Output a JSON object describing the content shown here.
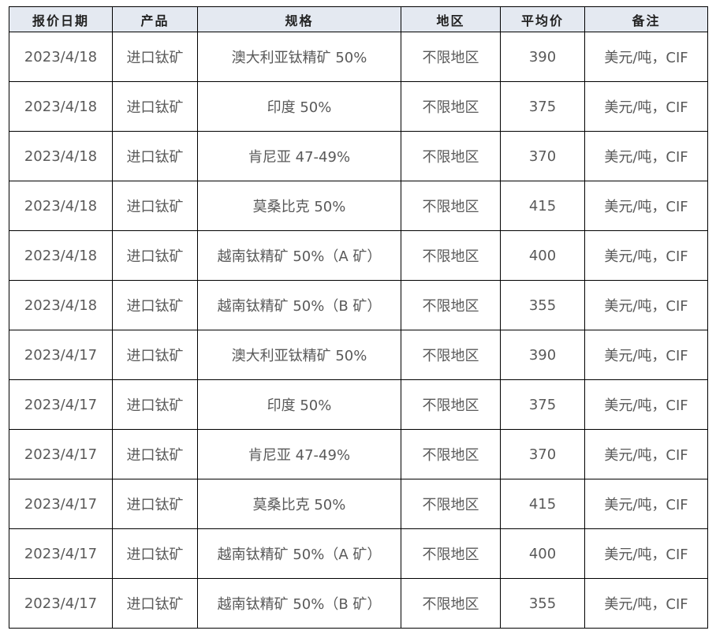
{
  "headers": [
    "报价日期",
    "产品",
    "规格",
    "地区",
    "平均价",
    "备注"
  ],
  "rows": [
    [
      "2023/4/18",
      "进口钛矿",
      "澳大利亚钛精矿 50%",
      "不限地区",
      "390",
      "美元/吨，CIF"
    ],
    [
      "2023/4/18",
      "进口钛矿",
      "印度 50%",
      "不限地区",
      "375",
      "美元/吨，CIF"
    ],
    [
      "2023/4/18",
      "进口钛矿",
      "肯尼亚 47-49%",
      "不限地区",
      "370",
      "美元/吨，CIF"
    ],
    [
      "2023/4/18",
      "进口钛矿",
      "莫桑比克 50%",
      "不限地区",
      "415",
      "美元/吨，CIF"
    ],
    [
      "2023/4/18",
      "进口钛矿",
      "越南钛精矿 50%（A 矿）",
      "不限地区",
      "400",
      "美元/吨，CIF"
    ],
    [
      "2023/4/18",
      "进口钛矿",
      "越南钛精矿 50%（B 矿）",
      "不限地区",
      "355",
      "美元/吨，CIF"
    ],
    [
      "2023/4/17",
      "进口钛矿",
      "澳大利亚钛精矿 50%",
      "不限地区",
      "390",
      "美元/吨，CIF"
    ],
    [
      "2023/4/17",
      "进口钛矿",
      "印度 50%",
      "不限地区",
      "375",
      "美元/吨，CIF"
    ],
    [
      "2023/4/17",
      "进口钛矿",
      "肯尼亚 47-49%",
      "不限地区",
      "370",
      "美元/吨，CIF"
    ],
    [
      "2023/4/17",
      "进口钛矿",
      "莫桑比克 50%",
      "不限地区",
      "415",
      "美元/吨，CIF"
    ],
    [
      "2023/4/17",
      "进口钛矿",
      "越南钛精矿 50%（A 矿）",
      "不限地区",
      "400",
      "美元/吨，CIF"
    ],
    [
      "2023/4/17",
      "进口钛矿",
      "越南钛精矿 50%（B 矿）",
      "不限地区",
      "355",
      "美元/吨，CIF"
    ]
  ],
  "colors": {
    "header_bg": "#e4e9f1",
    "text": "#595959"
  }
}
